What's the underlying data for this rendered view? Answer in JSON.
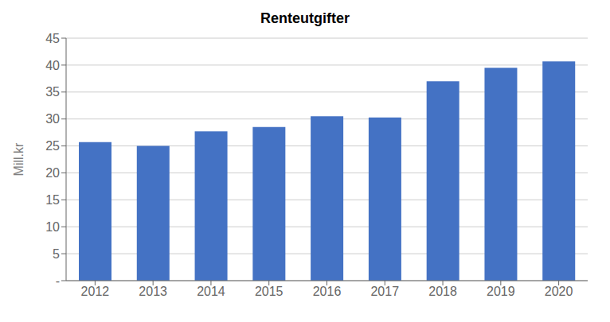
{
  "chart_data": {
    "type": "bar",
    "title": "Renteutgifter",
    "ylabel": "Mill.kr",
    "categories": [
      "2012",
      "2013",
      "2014",
      "2015",
      "2016",
      "2017",
      "2018",
      "2019",
      "2020"
    ],
    "values": [
      25.7,
      25.0,
      27.7,
      28.5,
      30.5,
      30.3,
      37.0,
      39.5,
      40.7
    ],
    "color": "#4472C4",
    "ylim": [
      0,
      45
    ],
    "yticks": [
      {
        "value": 0,
        "label": "-"
      },
      5,
      10,
      15,
      20,
      25,
      30,
      35,
      40,
      45
    ],
    "grid": true
  }
}
